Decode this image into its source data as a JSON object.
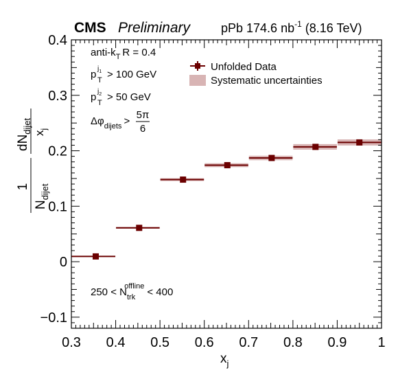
{
  "header": {
    "cms": "CMS",
    "preliminary": "Preliminary",
    "lumi": "pPb 174.6 nb",
    "lumi_exp": "-1",
    "energy": "(8.16 TeV)"
  },
  "annotations": {
    "jet_algo": "anti-k",
    "jet_algo_sub": "T",
    "jet_radius": "R = 0.4",
    "pt1_main": "p",
    "pt1_sub": "T",
    "pt1_sup": "j",
    "pt1_supsub": "1",
    "pt1_cut": "> 100 GeV",
    "pt2_main": "p",
    "pt2_sub": "T",
    "pt2_sup": "j",
    "pt2_supsub": "2",
    "pt2_cut": "> 50 GeV",
    "dphi_main": "Δφ",
    "dphi_sub": "dijets",
    "dphi_gt": ">",
    "dphi_num": "5π",
    "dphi_den": "6",
    "mult_low": "250 < N",
    "mult_sub": "trk",
    "mult_sup": "offline",
    "mult_high": "< 400"
  },
  "axes": {
    "xlabel_main": "x",
    "xlabel_sub": "j",
    "ylabel_frac_num": "1",
    "ylabel_frac_den": "N",
    "ylabel_frac_den_sub": "dijet",
    "ylabel_d_num": "dN",
    "ylabel_d_num_sub": "dijet",
    "ylabel_d_den": "x",
    "ylabel_d_den_sub": "j"
  },
  "legend": {
    "data_label": "Unfolded Data",
    "syst_label": "Systematic uncertainties"
  },
  "colors": {
    "data": "#6b0000",
    "systematic": "#d8b4b4"
  },
  "chart_data": {
    "type": "scatter",
    "xlim": [
      0.3,
      1.0
    ],
    "ylim": [
      -0.12,
      0.4
    ],
    "x_ticks": [
      "0.3",
      "0.4",
      "0.5",
      "0.6",
      "0.7",
      "0.8",
      "0.9",
      "1"
    ],
    "x_tick_values": [
      0.3,
      0.4,
      0.5,
      0.6,
      0.7,
      0.8,
      0.9,
      1.0
    ],
    "y_ticks": [
      "−0.1",
      "0",
      "0.1",
      "0.2",
      "0.3",
      "0.4"
    ],
    "y_tick_values": [
      -0.1,
      0,
      0.1,
      0.2,
      0.3,
      0.4
    ],
    "legend_position": "top-right",
    "series": [
      {
        "name": "Unfolded Data",
        "bins": [
          [
            0.3,
            0.4
          ],
          [
            0.4,
            0.5
          ],
          [
            0.5,
            0.6
          ],
          [
            0.6,
            0.7
          ],
          [
            0.7,
            0.8
          ],
          [
            0.8,
            0.9
          ],
          [
            0.9,
            1.0
          ]
        ],
        "x": [
          0.355,
          0.453,
          0.552,
          0.652,
          0.752,
          0.851,
          0.95
        ],
        "y": [
          0.0095,
          0.061,
          0.148,
          0.174,
          0.187,
          0.207,
          0.215
        ],
        "syst": [
          0.001,
          0.0015,
          0.0025,
          0.0035,
          0.004,
          0.005,
          0.0055
        ]
      }
    ]
  }
}
